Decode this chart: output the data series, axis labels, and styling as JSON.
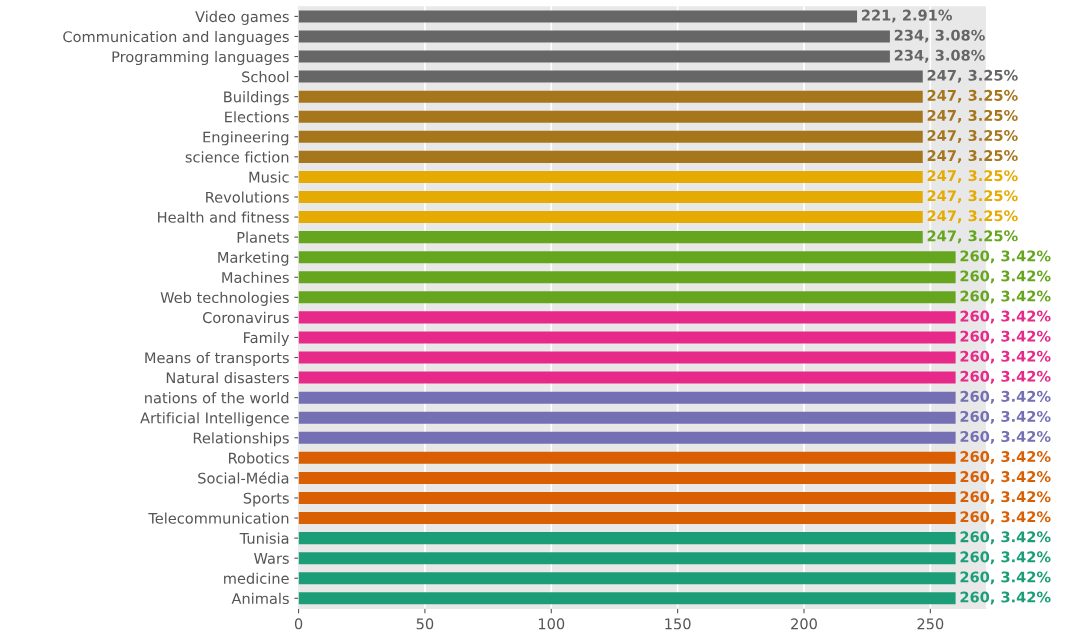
{
  "chart_data": {
    "type": "bar",
    "orientation": "horizontal",
    "categories": [
      "Video games",
      "Communication and languages",
      "Programming languages",
      "School",
      "Buildings",
      "Elections",
      "Engineering",
      "science fiction",
      "Music",
      "Revolutions",
      "Health and fitness",
      "Planets",
      "Marketing",
      "Machines",
      "Web technologies",
      "Coronavirus",
      "Family",
      "Means of transports",
      "Natural disasters",
      "nations of the world",
      "Artificial Intelligence",
      "Relationships",
      "Robotics",
      "Social-Média",
      "Sports",
      "Telecommunication",
      "Tunisia",
      "Wars",
      "medicine",
      "Animals"
    ],
    "values": [
      221,
      234,
      234,
      247,
      247,
      247,
      247,
      247,
      247,
      247,
      247,
      247,
      260,
      260,
      260,
      260,
      260,
      260,
      260,
      260,
      260,
      260,
      260,
      260,
      260,
      260,
      260,
      260,
      260,
      260
    ],
    "value_labels": [
      "221, 2.91%",
      "234, 3.08%",
      "234, 3.08%",
      "247, 3.25%",
      "247, 3.25%",
      "247, 3.25%",
      "247, 3.25%",
      "247, 3.25%",
      "247, 3.25%",
      "247, 3.25%",
      "247, 3.25%",
      "247, 3.25%",
      "260, 3.42%",
      "260, 3.42%",
      "260, 3.42%",
      "260, 3.42%",
      "260, 3.42%",
      "260, 3.42%",
      "260, 3.42%",
      "260, 3.42%",
      "260, 3.42%",
      "260, 3.42%",
      "260, 3.42%",
      "260, 3.42%",
      "260, 3.42%",
      "260, 3.42%",
      "260, 3.42%",
      "260, 3.42%",
      "260, 3.42%",
      "260, 3.42%"
    ],
    "colors": [
      "#666666",
      "#666666",
      "#666666",
      "#666666",
      "#a6761d",
      "#a6761d",
      "#a6761d",
      "#a6761d",
      "#e6ab02",
      "#e6ab02",
      "#e6ab02",
      "#66a61e",
      "#66a61e",
      "#66a61e",
      "#66a61e",
      "#e7298a",
      "#e7298a",
      "#e7298a",
      "#e7298a",
      "#7570b3",
      "#7570b3",
      "#7570b3",
      "#d95f02",
      "#d95f02",
      "#d95f02",
      "#d95f02",
      "#1b9e77",
      "#1b9e77",
      "#1b9e77",
      "#1b9e77"
    ],
    "xlim": [
      0,
      272
    ],
    "xticks": [
      0,
      50,
      100,
      150,
      200,
      250
    ],
    "grid": "x"
  }
}
